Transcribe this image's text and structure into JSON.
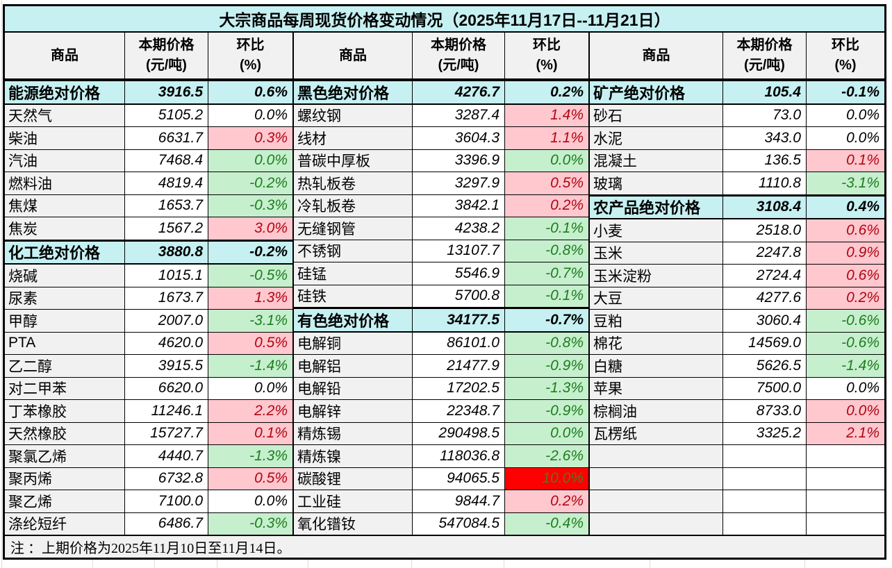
{
  "title": "大宗商品每周现货价格变动情况（2025年11月17日--11月21日）",
  "note": "注 ：上期价格为2025年11月10日至11月14日。",
  "columns": {
    "name": "商品",
    "price_line1": "本期价格",
    "price_line2": "(元/吨)",
    "pct_line1": "环比",
    "pct_line2": "(%)"
  },
  "colors": {
    "title_bg": "#c6f0f2",
    "section_bg": "#c6f0f2",
    "header_bg": "#f1f1f1",
    "name_bg": "#f1f1f1",
    "up_bg": "#ffc7ce",
    "up_text": "#b00614",
    "down_bg": "#c6efce",
    "down_text": "#1d7d1d",
    "alert_bg": "#ff0000",
    "alert_text": "#5c7320"
  },
  "groups": [
    {
      "rows": [
        {
          "name": "能源绝对价格",
          "price": "3916.5",
          "pct": "0.6%",
          "trend": "section"
        },
        {
          "name": "天然气",
          "price": "5105.2",
          "pct": "0.0%",
          "trend": "flat"
        },
        {
          "name": "柴油",
          "price": "6631.7",
          "pct": "0.3%",
          "trend": "up"
        },
        {
          "name": "汽油",
          "price": "7468.4",
          "pct": "0.0%",
          "trend": "down"
        },
        {
          "name": "燃料油",
          "price": "4819.4",
          "pct": "-0.2%",
          "trend": "down"
        },
        {
          "name": "焦煤",
          "price": "1653.7",
          "pct": "-0.3%",
          "trend": "down"
        },
        {
          "name": "焦炭",
          "price": "1567.2",
          "pct": "3.0%",
          "trend": "up"
        },
        {
          "name": "化工绝对价格",
          "price": "3880.8",
          "pct": "-0.2%",
          "trend": "section"
        },
        {
          "name": "烧碱",
          "price": "1015.1",
          "pct": "-0.5%",
          "trend": "down"
        },
        {
          "name": "尿素",
          "price": "1673.7",
          "pct": "1.3%",
          "trend": "up"
        },
        {
          "name": "甲醇",
          "price": "2007.0",
          "pct": "-3.1%",
          "trend": "down"
        },
        {
          "name": "PTA",
          "price": "4620.0",
          "pct": "0.5%",
          "trend": "up"
        },
        {
          "name": "乙二醇",
          "price": "3915.5",
          "pct": "-1.4%",
          "trend": "down"
        },
        {
          "name": "对二甲苯",
          "price": "6620.0",
          "pct": "0.0%",
          "trend": "flat"
        },
        {
          "name": "丁苯橡胶",
          "price": "11246.1",
          "pct": "2.2%",
          "trend": "up"
        },
        {
          "name": "天然橡胶",
          "price": "15727.7",
          "pct": "0.1%",
          "trend": "up"
        },
        {
          "name": "聚氯乙烯",
          "price": "4440.7",
          "pct": "-1.3%",
          "trend": "down"
        },
        {
          "name": "聚丙烯",
          "price": "6732.8",
          "pct": "0.5%",
          "trend": "up"
        },
        {
          "name": "聚乙烯",
          "price": "7100.0",
          "pct": "0.0%",
          "trend": "flat"
        },
        {
          "name": "涤纶短纤",
          "price": "6486.7",
          "pct": "-0.3%",
          "trend": "down"
        }
      ]
    },
    {
      "rows": [
        {
          "name": "黑色绝对价格",
          "price": "4276.7",
          "pct": "0.2%",
          "trend": "section"
        },
        {
          "name": "螺纹钢",
          "price": "3287.4",
          "pct": "1.4%",
          "trend": "up"
        },
        {
          "name": "线材",
          "price": "3604.3",
          "pct": "1.1%",
          "trend": "up"
        },
        {
          "name": "普碳中厚板",
          "price": "3396.9",
          "pct": "0.0%",
          "trend": "down"
        },
        {
          "name": "热轧板卷",
          "price": "3297.9",
          "pct": "0.5%",
          "trend": "up"
        },
        {
          "name": "冷轧板卷",
          "price": "3842.1",
          "pct": "0.2%",
          "trend": "up"
        },
        {
          "name": "无缝钢管",
          "price": "4238.2",
          "pct": "-0.1%",
          "trend": "down"
        },
        {
          "name": "不锈钢",
          "price": "13107.7",
          "pct": "-0.8%",
          "trend": "down"
        },
        {
          "name": "硅锰",
          "price": "5546.9",
          "pct": "-0.7%",
          "trend": "down"
        },
        {
          "name": "硅铁",
          "price": "5700.8",
          "pct": "-0.1%",
          "trend": "down"
        },
        {
          "name": "有色绝对价格",
          "price": "34177.5",
          "pct": "-0.7%",
          "trend": "section"
        },
        {
          "name": "电解铜",
          "price": "86101.0",
          "pct": "-0.8%",
          "trend": "down"
        },
        {
          "name": "电解铝",
          "price": "21477.9",
          "pct": "-0.9%",
          "trend": "down"
        },
        {
          "name": "电解铅",
          "price": "17202.5",
          "pct": "-1.3%",
          "trend": "down"
        },
        {
          "name": "电解锌",
          "price": "22348.7",
          "pct": "-0.9%",
          "trend": "down"
        },
        {
          "name": "精炼锡",
          "price": "290498.5",
          "pct": "0.0%",
          "trend": "down"
        },
        {
          "name": "精炼镍",
          "price": "118036.8",
          "pct": "-2.6%",
          "trend": "down"
        },
        {
          "name": "碳酸锂",
          "price": "94065.5",
          "pct": "10.0%",
          "trend": "alert"
        },
        {
          "name": "工业硅",
          "price": "9844.7",
          "pct": "0.2%",
          "trend": "up"
        },
        {
          "name": "氧化镨钕",
          "price": "547084.5",
          "pct": "-0.4%",
          "trend": "down"
        }
      ]
    },
    {
      "rows": [
        {
          "name": "矿产绝对价格",
          "price": "105.4",
          "pct": "-0.1%",
          "trend": "section"
        },
        {
          "name": "砂石",
          "price": "73.0",
          "pct": "0.0%",
          "trend": "flat"
        },
        {
          "name": "水泥",
          "price": "343.0",
          "pct": "0.0%",
          "trend": "flat"
        },
        {
          "name": "混凝土",
          "price": "136.5",
          "pct": "0.1%",
          "trend": "up"
        },
        {
          "name": "玻璃",
          "price": "1110.8",
          "pct": "-3.1%",
          "trend": "down"
        },
        {
          "name": "农产品绝对价格",
          "price": "3108.4",
          "pct": "0.4%",
          "trend": "section"
        },
        {
          "name": "小麦",
          "price": "2518.0",
          "pct": "0.6%",
          "trend": "up"
        },
        {
          "name": "玉米",
          "price": "2247.8",
          "pct": "0.9%",
          "trend": "up"
        },
        {
          "name": "玉米淀粉",
          "price": "2724.4",
          "pct": "0.6%",
          "trend": "up"
        },
        {
          "name": "大豆",
          "price": "4277.6",
          "pct": "0.2%",
          "trend": "up"
        },
        {
          "name": "豆粕",
          "price": "3060.4",
          "pct": "-0.6%",
          "trend": "down"
        },
        {
          "name": "棉花",
          "price": "14569.0",
          "pct": "-0.6%",
          "trend": "down"
        },
        {
          "name": "白糖",
          "price": "5626.5",
          "pct": "-1.4%",
          "trend": "down"
        },
        {
          "name": "苹果",
          "price": "7500.0",
          "pct": "0.0%",
          "trend": "flat"
        },
        {
          "name": "棕榈油",
          "price": "8733.0",
          "pct": "0.0%",
          "trend": "up"
        },
        {
          "name": "瓦楞纸",
          "price": "3325.2",
          "pct": "2.1%",
          "trend": "up"
        },
        {
          "name": "",
          "price": "",
          "pct": "",
          "trend": "empty"
        },
        {
          "name": "",
          "price": "",
          "pct": "",
          "trend": "empty"
        },
        {
          "name": "",
          "price": "",
          "pct": "",
          "trend": "empty"
        },
        {
          "name": "",
          "price": "",
          "pct": "",
          "trend": "empty"
        }
      ]
    }
  ]
}
